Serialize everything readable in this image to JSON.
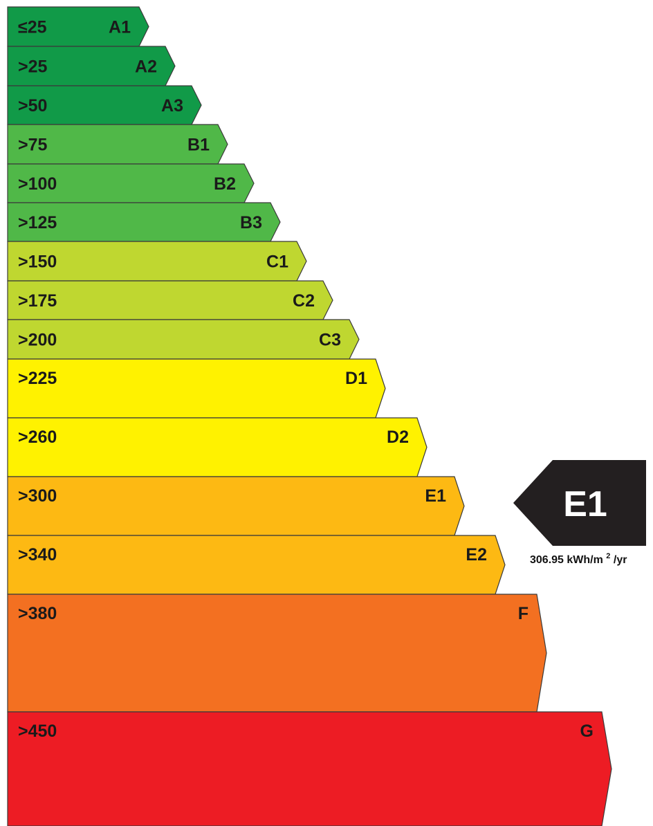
{
  "chart_data": {
    "type": "bar",
    "bands": [
      {
        "rating": "A1",
        "label": "≤25",
        "threshold_kwh_m2_yr": 25,
        "color": "#119a48"
      },
      {
        "rating": "A2",
        "label": ">25",
        "threshold_kwh_m2_yr": 25,
        "color": "#119a48"
      },
      {
        "rating": "A3",
        "label": ">50",
        "threshold_kwh_m2_yr": 50,
        "color": "#119a48"
      },
      {
        "rating": "B1",
        "label": ">75",
        "threshold_kwh_m2_yr": 75,
        "color": "#50b848"
      },
      {
        "rating": "B2",
        "label": ">100",
        "threshold_kwh_m2_yr": 100,
        "color": "#50b848"
      },
      {
        "rating": "B3",
        "label": ">125",
        "threshold_kwh_m2_yr": 125,
        "color": "#50b848"
      },
      {
        "rating": "C1",
        "label": ">150",
        "threshold_kwh_m2_yr": 150,
        "color": "#bfd730"
      },
      {
        "rating": "C2",
        "label": ">175",
        "threshold_kwh_m2_yr": 175,
        "color": "#bfd730"
      },
      {
        "rating": "C3",
        "label": ">200",
        "threshold_kwh_m2_yr": 200,
        "color": "#bfd730"
      },
      {
        "rating": "D1",
        "label": ">225",
        "threshold_kwh_m2_yr": 225,
        "color": "#fff200"
      },
      {
        "rating": "D2",
        "label": ">260",
        "threshold_kwh_m2_yr": 260,
        "color": "#fff200"
      },
      {
        "rating": "E1",
        "label": ">300",
        "threshold_kwh_m2_yr": 300,
        "color": "#fdb913"
      },
      {
        "rating": "E2",
        "label": ">340",
        "threshold_kwh_m2_yr": 340,
        "color": "#fdb913"
      },
      {
        "rating": "F",
        "label": ">380",
        "threshold_kwh_m2_yr": 380,
        "color": "#f37021"
      },
      {
        "rating": "G",
        "label": ">450",
        "threshold_kwh_m2_yr": 450,
        "color": "#ed1c24"
      }
    ],
    "current": {
      "rating": "E1",
      "value": 306.95,
      "value_text": "306.95",
      "unit_text": "kWh/m",
      "unit_superscript": "2",
      "unit_suffix": "/yr",
      "color": "#231f20"
    },
    "stroke_color": "#3a3a3a"
  }
}
